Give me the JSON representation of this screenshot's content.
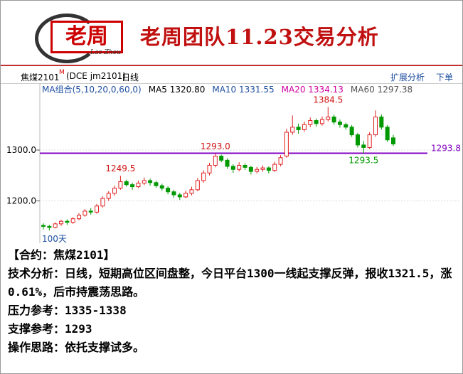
{
  "header": {
    "logo": "老周",
    "logo_script": "Lao Zhou",
    "title": "老周团队11.23交易分析"
  },
  "toolbar": {
    "symbol": "焦煤2101",
    "flag": "M",
    "code": "(DCE jm2101)",
    "period": "日线",
    "extend": "扩展分析",
    "order": "下单"
  },
  "chart_data": {
    "type": "candlestick",
    "legend": [
      {
        "text": "MA组合(5,10,20,0,60,0)",
        "color": "#1f4fa0"
      },
      {
        "text": "MA5 1320.80",
        "color": "#000000"
      },
      {
        "text": "MA10 1331.55",
        "color": "#1f4fa0"
      },
      {
        "text": "MA20 1334.13",
        "color": "#d000a0"
      },
      {
        "text": "MA60 1297.38",
        "color": "#555555"
      }
    ],
    "up_color": "#e02020",
    "down_color": "#009900",
    "candles": [
      [
        1152,
        1156,
        1144,
        1150
      ],
      [
        1150,
        1153,
        1142,
        1148
      ],
      [
        1148,
        1158,
        1146,
        1155
      ],
      [
        1155,
        1163,
        1151,
        1160
      ],
      [
        1160,
        1164,
        1153,
        1158
      ],
      [
        1158,
        1168,
        1155,
        1165
      ],
      [
        1165,
        1176,
        1162,
        1172
      ],
      [
        1172,
        1184,
        1169,
        1180
      ],
      [
        1180,
        1186,
        1173,
        1178
      ],
      [
        1178,
        1194,
        1175,
        1190
      ],
      [
        1190,
        1209,
        1187,
        1205
      ],
      [
        1205,
        1219,
        1200,
        1215
      ],
      [
        1215,
        1230,
        1210,
        1225
      ],
      [
        1225,
        1249.5,
        1222,
        1238
      ],
      [
        1238,
        1242,
        1228,
        1232
      ],
      [
        1232,
        1236,
        1222,
        1228
      ],
      [
        1228,
        1240,
        1225,
        1235
      ],
      [
        1235,
        1246,
        1231,
        1240
      ],
      [
        1240,
        1244,
        1230,
        1236
      ],
      [
        1236,
        1240,
        1226,
        1230
      ],
      [
        1230,
        1234,
        1220,
        1225
      ],
      [
        1225,
        1229,
        1213,
        1218
      ],
      [
        1218,
        1222,
        1206,
        1212
      ],
      [
        1212,
        1216,
        1202,
        1208
      ],
      [
        1208,
        1220,
        1205,
        1215
      ],
      [
        1215,
        1228,
        1211,
        1222
      ],
      [
        1222,
        1245,
        1219,
        1240
      ],
      [
        1240,
        1260,
        1236,
        1255
      ],
      [
        1255,
        1275,
        1250,
        1270
      ],
      [
        1270,
        1293.0,
        1266,
        1288
      ],
      [
        1288,
        1291,
        1276,
        1280
      ],
      [
        1280,
        1284,
        1263,
        1268
      ],
      [
        1268,
        1272,
        1255,
        1262
      ],
      [
        1262,
        1276,
        1258,
        1270
      ],
      [
        1270,
        1274,
        1261,
        1266
      ],
      [
        1266,
        1269,
        1252,
        1258
      ],
      [
        1258,
        1267,
        1254,
        1262
      ],
      [
        1262,
        1270,
        1257,
        1265
      ],
      [
        1265,
        1268,
        1254,
        1260
      ],
      [
        1260,
        1277,
        1257,
        1272
      ],
      [
        1272,
        1290,
        1268,
        1285
      ],
      [
        1288,
        1342,
        1285,
        1335
      ],
      [
        1335,
        1368,
        1330,
        1345
      ],
      [
        1345,
        1352,
        1332,
        1340
      ],
      [
        1340,
        1356,
        1336,
        1350
      ],
      [
        1350,
        1364,
        1345,
        1358
      ],
      [
        1358,
        1362,
        1346,
        1352
      ],
      [
        1352,
        1366,
        1348,
        1360
      ],
      [
        1360,
        1384.5,
        1356,
        1365
      ],
      [
        1365,
        1370,
        1350,
        1355
      ],
      [
        1355,
        1360,
        1344,
        1350
      ],
      [
        1350,
        1354,
        1340,
        1345
      ],
      [
        1345,
        1349,
        1326,
        1330
      ],
      [
        1330,
        1334,
        1305,
        1310
      ],
      [
        1310,
        1318,
        1293.5,
        1305
      ],
      [
        1305,
        1335,
        1302,
        1330
      ],
      [
        1330,
        1378,
        1326,
        1365
      ],
      [
        1365,
        1370,
        1340,
        1345
      ],
      [
        1345,
        1349,
        1316,
        1320
      ],
      [
        1324,
        1330,
        1308,
        1312
      ]
    ],
    "ylim": [
      1117,
      1430
    ],
    "yticks": [
      {
        "value": 1300,
        "label": "1300.0"
      },
      {
        "value": 1200,
        "label": "1200.0"
      }
    ],
    "annotations": [
      {
        "value": 1249.5,
        "label": "1249.5"
      },
      {
        "value": 1293,
        "label": "1293.0"
      },
      {
        "value": 1384.5,
        "label": "1384.5"
      },
      {
        "value": 1293.5,
        "label": "1293.5"
      }
    ],
    "support_line": {
      "value": 1293.8,
      "label": "1293.8",
      "color": "#8000c0"
    },
    "range_label": "100天"
  },
  "analysis": {
    "lines": [
      "【合约：焦煤2101】",
      "技术分析：日线，短期高位区间盘整，今日平台1300一线起支撑反弹，报收1321.5，涨0.61%，后市持震荡思路。",
      "压力参考：1335-1338",
      "支撑参考：1293",
      "操作思路：依托支撑试多。"
    ]
  }
}
